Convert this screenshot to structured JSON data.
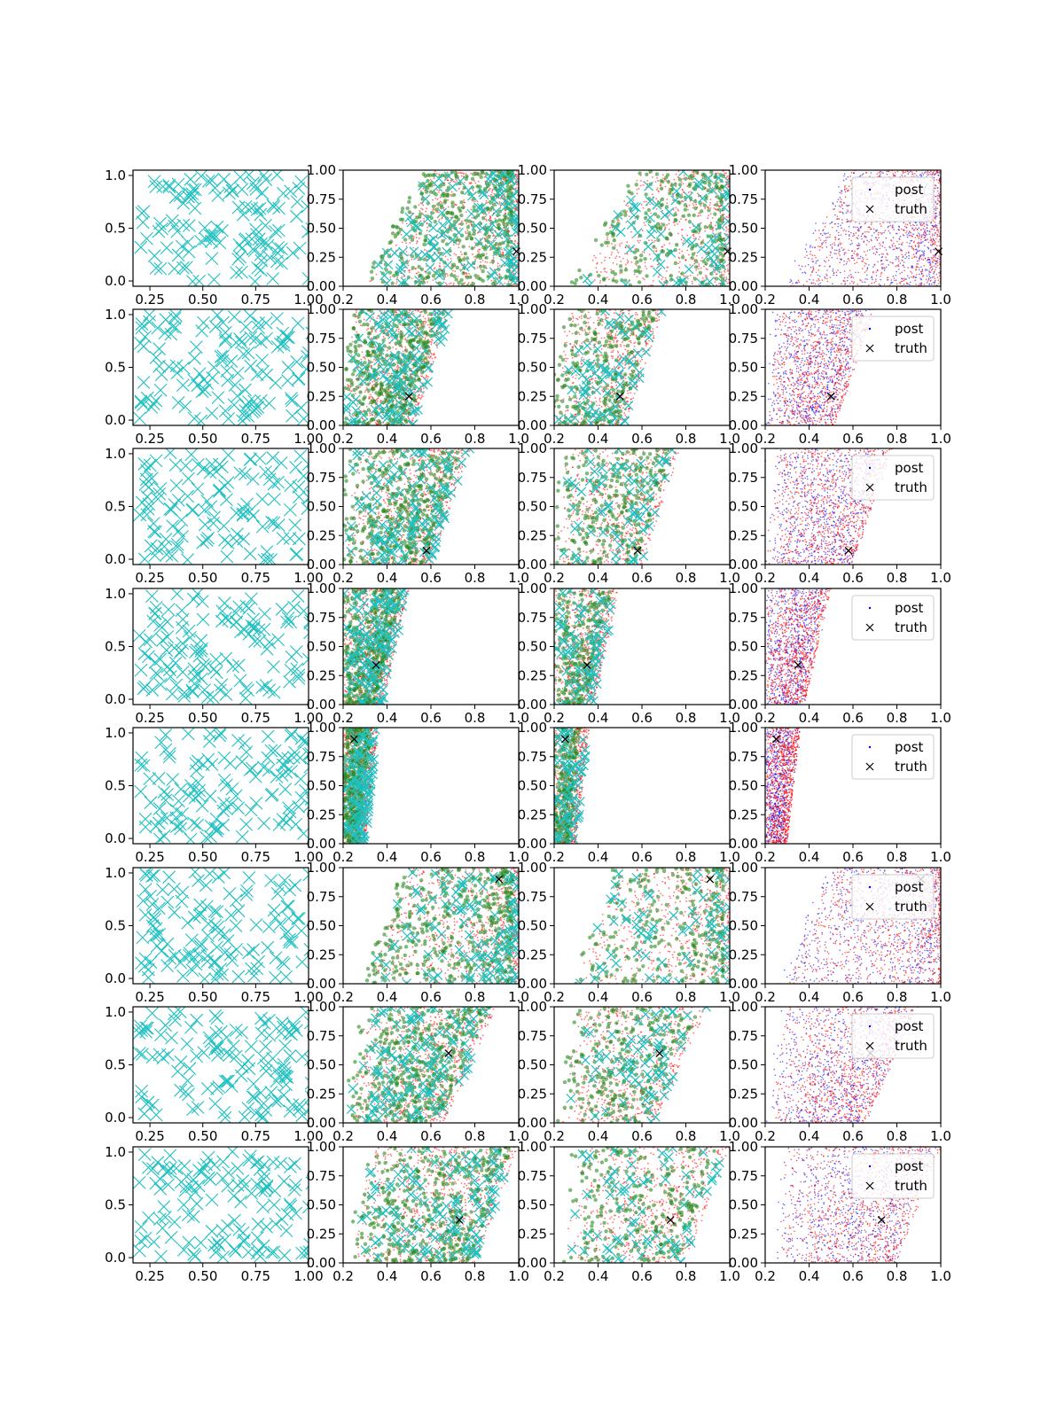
{
  "figure": {
    "rows": 8,
    "cols": 4,
    "description_free": true
  },
  "colors": {
    "prior_marker": "#1fc0c0",
    "green_points": "#2a8a1f",
    "red_points": "#ff0000",
    "blue_points": "#0000ff",
    "truth_marker": "#000000",
    "axes": "#000000"
  },
  "legend": {
    "post_label": "post",
    "truth_label": "truth"
  },
  "axes_ticks": {
    "col0_x": [
      "0.25",
      "0.50",
      "0.75",
      "1.00"
    ],
    "col0_y": [
      "0.0",
      "0.5",
      "1.0"
    ],
    "other_x": [
      "0.2",
      "0.4",
      "0.6",
      "0.8",
      "1.0"
    ],
    "other_y": [
      "0.00",
      "0.25",
      "0.50",
      "0.75",
      "1.00"
    ]
  },
  "chart_data": {
    "type": "scatter",
    "layout": "8x4 grid of scatter subplots",
    "col0": {
      "xlim": [
        0.17,
        1.0
      ],
      "ylim": [
        -0.05,
        1.05
      ],
      "marker": "x",
      "color": "#1fc0c0"
    },
    "cols1to3": {
      "xlim": [
        0.2,
        1.0
      ],
      "ylim": [
        0.0,
        1.0
      ]
    },
    "legend_columns": [
      3
    ],
    "legend_entries": [
      "post",
      "truth"
    ],
    "rows": [
      {
        "truth": [
          0.99,
          0.3
        ],
        "band": "wide",
        "lo0": 0.3,
        "lo1": 0.6,
        "wid": 0.7
      },
      {
        "truth": [
          0.5,
          0.25
        ],
        "band": "slanted",
        "lo0": 0.2,
        "lo1": 0.25,
        "edge0": 0.52,
        "edge1": 0.7
      },
      {
        "truth": [
          0.58,
          0.12
        ],
        "band": "slanted",
        "lo0": 0.2,
        "lo1": 0.25,
        "edge0": 0.6,
        "edge1": 0.78
      },
      {
        "truth": [
          0.35,
          0.34
        ],
        "band": "slanted",
        "lo0": 0.2,
        "lo1": 0.2,
        "edge0": 0.38,
        "edge1": 0.5
      },
      {
        "truth": [
          0.25,
          0.9
        ],
        "band": "slanted",
        "lo0": 0.2,
        "lo1": 0.2,
        "edge0": 0.3,
        "edge1": 0.36
      },
      {
        "truth": [
          0.91,
          0.9
        ],
        "band": "wide",
        "lo0": 0.3,
        "lo1": 0.5,
        "wid": 0.7
      },
      {
        "truth": [
          0.68,
          0.6
        ],
        "band": "slanted",
        "lo0": 0.22,
        "lo1": 0.3,
        "edge0": 0.66,
        "edge1": 0.9
      },
      {
        "truth": [
          0.73,
          0.37
        ],
        "band": "slanted",
        "lo0": 0.25,
        "lo1": 0.3,
        "edge0": 0.8,
        "edge1": 1.0
      }
    ]
  }
}
